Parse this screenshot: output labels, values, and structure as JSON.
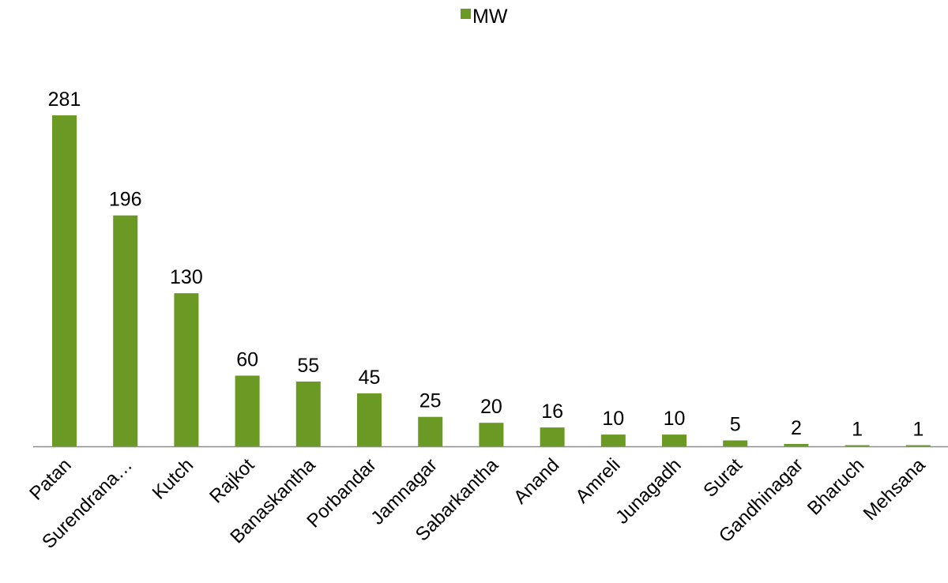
{
  "chart_data": {
    "type": "bar",
    "legend": {
      "position": "top",
      "entries": [
        "MW"
      ]
    },
    "series": [
      {
        "name": "MW",
        "color": "#6a9a23",
        "values": [
          281,
          196,
          130,
          60,
          55,
          45,
          25,
          20,
          16,
          10,
          10,
          5,
          2,
          1,
          1
        ]
      }
    ],
    "categories": [
      "Patan",
      "Surendrana…",
      "Kutch",
      "Rajkot",
      "Banaskantha",
      "Porbandar",
      "Jamnagar",
      "Sabarkantha",
      "Anand",
      "Amreli",
      "Junagadh",
      "Surat",
      "Gandhinagar",
      "Bharuch",
      "Mehsana"
    ],
    "value_labels": [
      "281",
      "196",
      "130",
      "60",
      "55",
      "45",
      "25",
      "20",
      "16",
      "10",
      "10",
      "5",
      "2",
      "1",
      "1"
    ],
    "title": "",
    "xlabel": "",
    "ylabel": "",
    "ylim": [
      0,
      281
    ],
    "grid": false,
    "data_labels": true
  }
}
